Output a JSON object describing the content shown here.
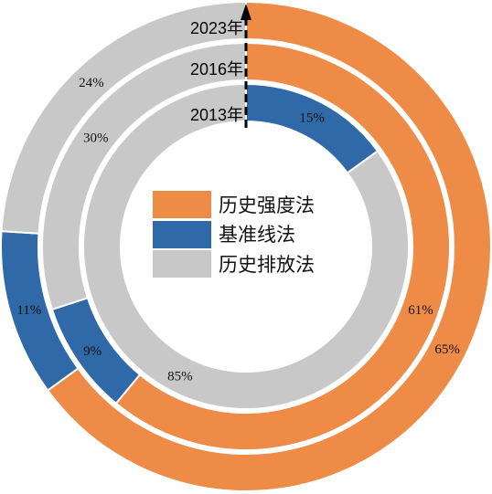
{
  "chart_data": {
    "type": "donut",
    "title": "",
    "series_names": [
      "历史强度法",
      "基准线法",
      "历史排放法"
    ],
    "colors": [
      "#EE8B46",
      "#2F69A8",
      "#C8C8C8"
    ],
    "rings": [
      {
        "year": "2013年",
        "values": [
          0,
          15,
          85
        ],
        "labels": [
          "",
          "15%",
          "85%"
        ]
      },
      {
        "year": "2016年",
        "values": [
          61,
          9,
          30
        ],
        "labels": [
          "61%",
          "9%",
          "30%"
        ]
      },
      {
        "year": "2023年",
        "values": [
          65,
          11,
          24
        ],
        "labels": [
          "65%",
          "11%",
          "24%"
        ]
      }
    ],
    "legend": {
      "position": "center",
      "items": [
        {
          "label": "历史强度法",
          "color": "#EE8B46"
        },
        {
          "label": "基准线法",
          "color": "#2F69A8"
        },
        {
          "label": "历史排放法",
          "color": "#C8C8C8"
        }
      ]
    }
  }
}
